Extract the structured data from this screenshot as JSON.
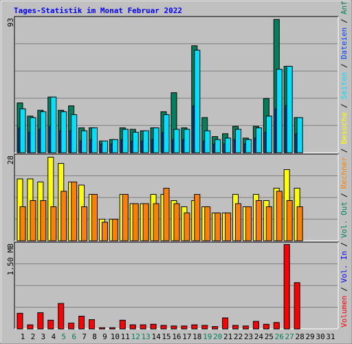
{
  "chart_data": [
    {
      "type": "bar",
      "title": "Tages-Statistik im Monat Februar 2022",
      "ylim": [
        0,
        93
      ],
      "yticks": [
        93
      ],
      "ygrid": [
        18.6,
        37.2,
        55.8,
        74.4
      ],
      "series": [
        {
          "name": "Anfragen",
          "color": "#00805c",
          "values": [
            34,
            25,
            29,
            38,
            29,
            32,
            17,
            17,
            8,
            9,
            17,
            16,
            15,
            17,
            28,
            41,
            17,
            73,
            24,
            11,
            13,
            18,
            10,
            18,
            37,
            91,
            59,
            24,
            null,
            null,
            null
          ]
        },
        {
          "name": "Dateien",
          "color": "#0040ff",
          "values": [
            17,
            14,
            16,
            18,
            15,
            15,
            8,
            9,
            6,
            6,
            9,
            8,
            8,
            9,
            14,
            9,
            9,
            32,
            8,
            6,
            6,
            9,
            6,
            10,
            14,
            30,
            32,
            13,
            null,
            null,
            null
          ]
        },
        {
          "name": "Seiten",
          "color": "#00e0ff",
          "values": [
            30,
            24,
            28,
            38,
            28,
            26,
            15,
            17,
            8,
            9,
            16,
            14,
            15,
            17,
            26,
            16,
            16,
            70,
            15,
            9,
            10,
            16,
            9,
            17,
            25,
            57,
            59,
            24,
            null,
            null,
            null
          ]
        }
      ],
      "legend_extra": []
    },
    {
      "type": "bar",
      "ylim": [
        0,
        28
      ],
      "yticks": [
        28
      ],
      "ygrid": [
        7,
        14,
        21
      ],
      "series": [
        {
          "name": "Besuche",
          "color": "#ffff00",
          "values": [
            20,
            20,
            19,
            27,
            25,
            19,
            18,
            15,
            7,
            7,
            15,
            12,
            12,
            15,
            15,
            13,
            11,
            13,
            11,
            9,
            9,
            15,
            11,
            15,
            13,
            17,
            23,
            17,
            null,
            null,
            null
          ]
        },
        {
          "name": "Rechner",
          "color": "#ff8000",
          "values": [
            11,
            13,
            13,
            11,
            16,
            19,
            11,
            15,
            6,
            7,
            15,
            12,
            12,
            12,
            17,
            12,
            9,
            15,
            11,
            9,
            9,
            12,
            11,
            13,
            11,
            16,
            13,
            11,
            null,
            null,
            null
          ]
        }
      ],
      "legend_extra": []
    },
    {
      "type": "bar",
      "ylim": [
        0,
        1.5
      ],
      "yticks": [
        {
          "value": 1.5,
          "label": "1.50 MB"
        }
      ],
      "ygrid": [
        0.375,
        0.75,
        1.125
      ],
      "series": [
        {
          "name": "Volumen",
          "color": "#ff0000",
          "values": [
            0.27,
            0.07,
            0.28,
            0.15,
            0.44,
            0.1,
            0.22,
            0.16,
            0.02,
            0.02,
            0.15,
            0.07,
            0.07,
            0.08,
            0.06,
            0.05,
            0.05,
            0.07,
            0.06,
            0.04,
            0.19,
            0.06,
            0.05,
            0.13,
            0.08,
            0.11,
            1.46,
            0.8,
            null,
            null,
            null
          ]
        }
      ],
      "legend_extra": [
        {
          "name": "Vol. Out",
          "color": "#00805c"
        },
        {
          "name": "Vol. In",
          "color": "#0000ff"
        }
      ],
      "separator": "/",
      "categories": [
        "1",
        "2",
        "3",
        "4",
        "5",
        "6",
        "7",
        "8",
        "9",
        "10",
        "11",
        "12",
        "13",
        "14",
        "15",
        "16",
        "17",
        "18",
        "19",
        "20",
        "21",
        "22",
        "23",
        "24",
        "25",
        "26",
        "27",
        "28",
        "29",
        "30",
        "31"
      ],
      "category_colors": [
        "#000000",
        "#000000",
        "#000000",
        "#000000",
        "#00805c",
        "#00805c",
        "#000000",
        "#000000",
        "#000000",
        "#000000",
        "#000000",
        "#00805c",
        "#00805c",
        "#000000",
        "#000000",
        "#000000",
        "#000000",
        "#000000",
        "#00805c",
        "#00805c",
        "#000000",
        "#000000",
        "#000000",
        "#000000",
        "#000000",
        "#00805c",
        "#00805c",
        "#000000",
        "#000000",
        "#000000",
        "#000000"
      ]
    }
  ]
}
